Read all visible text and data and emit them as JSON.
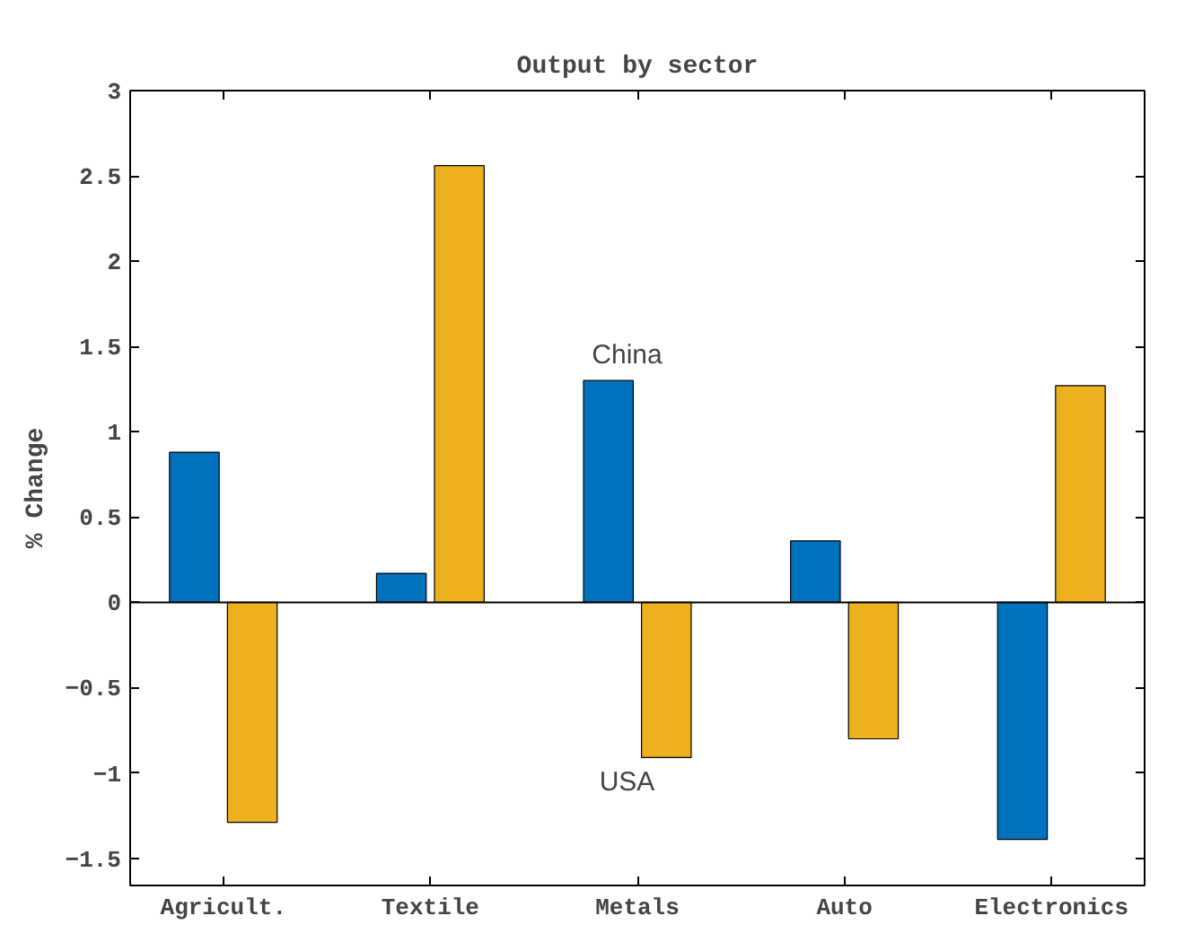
{
  "chart_data": {
    "type": "bar",
    "title": "Output by sector",
    "ylabel": "% Change",
    "categories": [
      "Agricult.",
      "Textile",
      "Metals",
      "Auto",
      "Electronics"
    ],
    "series": [
      {
        "name": "China",
        "color": "#0072bd",
        "values": [
          0.88,
          0.17,
          1.3,
          0.36,
          -1.39
        ]
      },
      {
        "name": "USA",
        "color": "#edb120",
        "values": [
          -1.29,
          2.56,
          -0.91,
          -0.8,
          1.27
        ]
      }
    ],
    "ylim": [
      -1.66,
      3
    ],
    "yticks": [
      -1.5,
      -1,
      -0.5,
      0,
      0.5,
      1,
      1.5,
      2,
      2.5,
      3
    ]
  }
}
